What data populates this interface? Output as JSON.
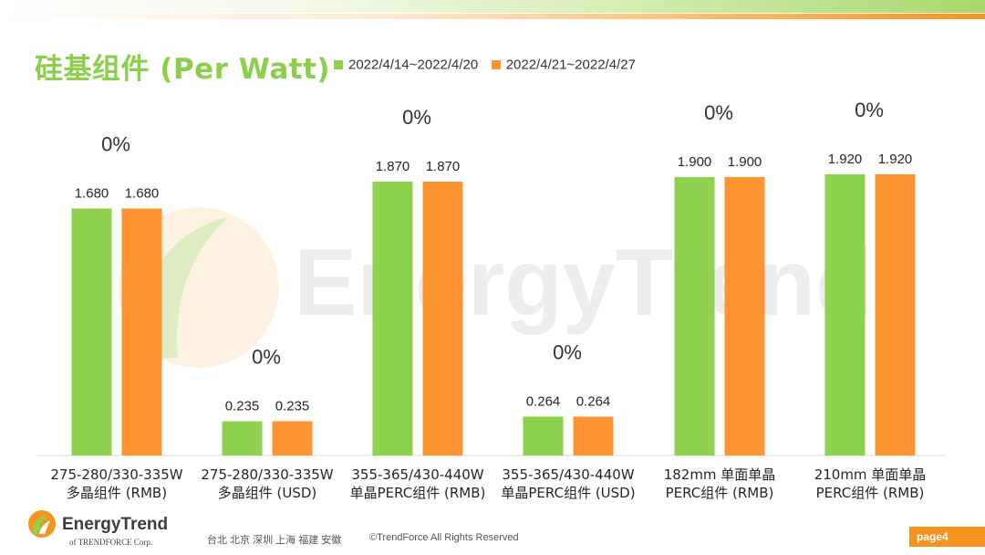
{
  "title": "硅基组件 (Per Watt)",
  "colors": {
    "series1": "#8dd14f",
    "series2": "#fd9431",
    "title": "#8ccf4a",
    "accent": "#f7931e"
  },
  "chart_data": {
    "type": "bar",
    "categories": [
      "275-280/330-335W\n多晶组件 (RMB)",
      "275-280/330-335W\n多晶组件 (USD)",
      "355-365/430-440W\n单晶PERC组件 (RMB)",
      "355-365/430-440W\n单晶PERC组件 (USD)",
      "182mm 单面单晶\nPERC组件 (RMB)",
      "210mm 单面单晶\nPERC组件 (RMB)"
    ],
    "series": [
      {
        "name": "2022/4/14~2022/4/20",
        "values": [
          1.68,
          0.235,
          1.87,
          0.264,
          1.9,
          1.92
        ],
        "drawn_fraction": [
          0.902,
          0.125,
          1.0,
          0.142,
          1.017,
          1.027
        ]
      },
      {
        "name": "2022/4/21~2022/4/27",
        "values": [
          1.68,
          0.235,
          1.87,
          0.264,
          1.9,
          1.92
        ],
        "drawn_fraction": [
          0.902,
          0.125,
          1.0,
          0.142,
          1.017,
          1.027
        ]
      }
    ],
    "value_labels": [
      "1.680",
      "0.235",
      "1.870",
      "0.264",
      "1.900",
      "1.920"
    ],
    "change_labels": [
      "0%",
      "0%",
      "0%",
      "0%",
      "0%",
      "0%"
    ],
    "legend_position": "top",
    "grid": false
  },
  "watermark": "EnergyTrend",
  "footer": {
    "logo_name": "EnergyTrend",
    "logo_of": "of",
    "logo_company": "TRENDFORCE Corp.",
    "cities": "台北  北京  深圳  上海  福建  安徽",
    "copyright": "©TrendForce All Rights Reserved",
    "page": "page4"
  }
}
